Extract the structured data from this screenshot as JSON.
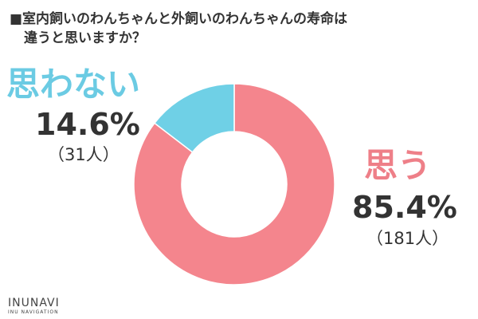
{
  "title": {
    "line1": "■室内飼いのわんちゃんと外飼いのわんちゃんの寿命は",
    "line2": "違うと思いますか？"
  },
  "chart_data": {
    "type": "pie",
    "title": "室内飼いのわんちゃんと外飼いのわんちゃんの寿命は違うと思いますか？",
    "slices": [
      {
        "label": "思う",
        "percent_label": "85.4%",
        "count_label": "（181人）",
        "value": 85.4,
        "count": 181,
        "color": "#f4858d"
      },
      {
        "label": "思わない",
        "percent_label": "14.6%",
        "count_label": "（31人）",
        "value": 14.6,
        "count": 31,
        "color": "#6fd0e6"
      }
    ]
  },
  "label_colors": {
    "yes": "#ee7f88",
    "no": "#6bcbe3"
  },
  "logo": {
    "brand": "INUNAVI",
    "sub": "INU NAVIGATION"
  }
}
